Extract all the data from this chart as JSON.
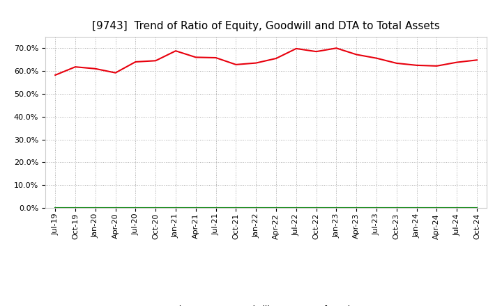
{
  "title": "[9743]  Trend of Ratio of Equity, Goodwill and DTA to Total Assets",
  "x_labels": [
    "Jul-19",
    "Oct-19",
    "Jan-20",
    "Apr-20",
    "Jul-20",
    "Oct-20",
    "Jan-21",
    "Apr-21",
    "Jul-21",
    "Oct-21",
    "Jan-22",
    "Apr-22",
    "Jul-22",
    "Oct-22",
    "Jan-23",
    "Apr-23",
    "Jul-23",
    "Oct-23",
    "Jan-24",
    "Apr-24",
    "Jul-24",
    "Oct-24"
  ],
  "equity": [
    0.582,
    0.618,
    0.61,
    0.592,
    0.64,
    0.645,
    0.688,
    0.66,
    0.658,
    0.628,
    0.635,
    0.655,
    0.698,
    0.685,
    0.7,
    0.672,
    0.656,
    0.634,
    0.625,
    0.622,
    0.638,
    0.648
  ],
  "goodwill": [
    0.0,
    0.0,
    0.0,
    0.0,
    0.0,
    0.0,
    0.0,
    0.0,
    0.0,
    0.0,
    0.0,
    0.0,
    0.0,
    0.0,
    0.0,
    0.0,
    0.0,
    0.0,
    0.0,
    0.0,
    0.0,
    0.0
  ],
  "dta": [
    0.0,
    0.0,
    0.0,
    0.0,
    0.0,
    0.0,
    0.0,
    0.0,
    0.0,
    0.0,
    0.0,
    0.0,
    0.0,
    0.0,
    0.0,
    0.0,
    0.0,
    0.0,
    0.0,
    0.0,
    0.0,
    0.0
  ],
  "equity_color": "#e8000d",
  "goodwill_color": "#0000cd",
  "dta_color": "#008000",
  "ylim": [
    0.0,
    0.75
  ],
  "yticks": [
    0.0,
    0.1,
    0.2,
    0.3,
    0.4,
    0.5,
    0.6,
    0.7
  ],
  "background_color": "#ffffff",
  "plot_bg_color": "#ffffff",
  "grid_color": "#aaaaaa",
  "title_fontsize": 11,
  "tick_fontsize": 8,
  "legend_fontsize": 9
}
